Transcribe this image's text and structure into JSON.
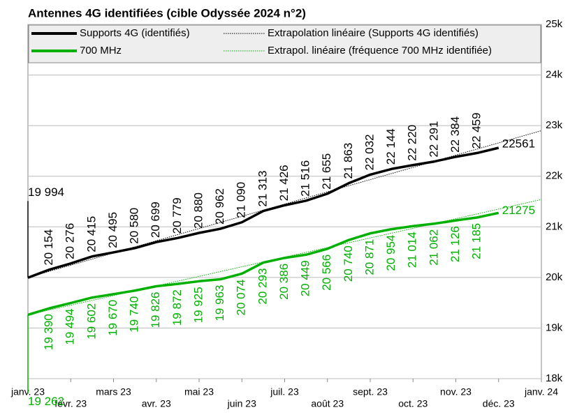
{
  "chart_data": {
    "type": "line",
    "title": "Antennes 4G identifiées (cible Odyssée 2024 n°2)",
    "x": [
      0,
      0.5,
      1,
      1.5,
      2,
      2.5,
      3,
      3.5,
      4,
      4.5,
      5,
      5.5,
      6,
      6.5,
      7,
      7.5,
      8,
      8.5,
      9,
      9.5,
      10,
      10.5,
      11
    ],
    "xlim": [
      0,
      12
    ],
    "xticks": [
      {
        "value": 0,
        "label": "janv. 23"
      },
      {
        "value": 1,
        "label": "févr. 23"
      },
      {
        "value": 2,
        "label": "mars 23"
      },
      {
        "value": 3,
        "label": "avr. 23"
      },
      {
        "value": 4,
        "label": "mai 23"
      },
      {
        "value": 5,
        "label": "juin 23"
      },
      {
        "value": 6,
        "label": "juil. 23"
      },
      {
        "value": 7,
        "label": "août 23"
      },
      {
        "value": 8,
        "label": "sept. 23"
      },
      {
        "value": 9,
        "label": "oct. 23"
      },
      {
        "value": 10,
        "label": "nov. 23"
      },
      {
        "value": 11,
        "label": "déc. 23"
      },
      {
        "value": 12,
        "label": "janv. 24"
      }
    ],
    "ylim": [
      18000,
      25000
    ],
    "yticks": [
      {
        "value": 18000,
        "label": "18k"
      },
      {
        "value": 19000,
        "label": "19k"
      },
      {
        "value": 20000,
        "label": "20k"
      },
      {
        "value": 21000,
        "label": "21k"
      },
      {
        "value": 22000,
        "label": "22k"
      },
      {
        "value": 23000,
        "label": "23k"
      },
      {
        "value": 24000,
        "label": "24k"
      },
      {
        "value": 25000,
        "label": "25k"
      }
    ],
    "grid": true,
    "series": [
      {
        "name": "Supports 4G (identifiés)",
        "color": "#000000",
        "values": [
          19994,
          20154,
          20276,
          20415,
          20495,
          20580,
          20699,
          20779,
          20880,
          20962,
          21090,
          21313,
          21426,
          21516,
          21655,
          21863,
          22032,
          22144,
          22220,
          22291,
          22384,
          22459,
          22561
        ],
        "value_labels": [
          "19 994",
          "20 154",
          "20 276",
          "20 415",
          "20 495",
          "20 580",
          "20 699",
          "20 779",
          "20 880",
          "20 962",
          "21 090",
          "21 313",
          "21 426",
          "21 516",
          "21 655",
          "21 863",
          "22 032",
          "22 144",
          "22 220",
          "22 291",
          "22 384",
          "22 459",
          "22561"
        ]
      },
      {
        "name": "700 MHz",
        "color": "#00b000",
        "values": [
          19262,
          19390,
          19494,
          19602,
          19670,
          19740,
          19826,
          19872,
          19925,
          19963,
          20074,
          20293,
          20386,
          20449,
          20566,
          20740,
          20871,
          20954,
          21014,
          21062,
          21126,
          21185,
          21275
        ],
        "value_labels": [
          "19 262",
          "19 390",
          "19 494",
          "19 602",
          "19 670",
          "19 740",
          "19 826",
          "19 872",
          "19 925",
          "19 963",
          "20 074",
          "20 293",
          "20 386",
          "20 449",
          "20 566",
          "20 740",
          "20 871",
          "20 954",
          "21 014",
          "21 062",
          "21 126",
          "21 185",
          "21275"
        ]
      }
    ],
    "trendlines": [
      {
        "name": "Extrapolation linéaire (Supports 4G identifiés)",
        "color": "#000000",
        "x": [
          0,
          12
        ],
        "values": [
          20000,
          22900
        ]
      },
      {
        "name": "Extrapol. linéaire (fréquence 700 MHz identifiée)",
        "color": "#00b000",
        "x": [
          0,
          12
        ],
        "values": [
          19262,
          21540
        ]
      }
    ]
  }
}
